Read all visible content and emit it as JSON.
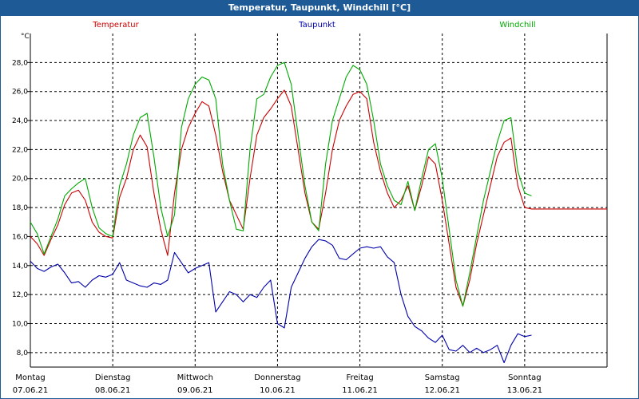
{
  "window": {
    "title": "Temperatur, Taupunkt, Windchill [°C]"
  },
  "chart_data": {
    "type": "line",
    "unit": "°C",
    "ylim": [
      7.0,
      30.0
    ],
    "yticks": [
      "8,0",
      "10,0",
      "12,0",
      "14,0",
      "16,0",
      "18,0",
      "20,0",
      "22,0",
      "24,0",
      "26,0",
      "28,0"
    ],
    "ytick_values": [
      8,
      10,
      12,
      14,
      16,
      18,
      20,
      22,
      24,
      26,
      28
    ],
    "xlim": [
      0,
      168
    ],
    "days": [
      {
        "weekday": "Montag",
        "date": "07.06.21"
      },
      {
        "weekday": "Dienstag",
        "date": "08.06.21"
      },
      {
        "weekday": "Mittwoch",
        "date": "09.06.21"
      },
      {
        "weekday": "Donnerstag",
        "date": "10.06.21"
      },
      {
        "weekday": "Freitag",
        "date": "11.06.21"
      },
      {
        "weekday": "Samstag",
        "date": "12.06.21"
      },
      {
        "weekday": "Sonntag",
        "date": "13.06.21"
      }
    ],
    "grid": true,
    "series": [
      {
        "name": "Temperatur",
        "color": "#cc0000",
        "x": [
          0,
          2,
          4,
          6,
          8,
          10,
          12,
          14,
          16,
          18,
          20,
          22,
          24,
          26,
          28,
          30,
          32,
          34,
          36,
          38,
          40,
          42,
          44,
          46,
          48,
          50,
          52,
          54,
          56,
          58,
          60,
          62,
          64,
          66,
          68,
          70,
          72,
          74,
          76,
          78,
          80,
          82,
          84,
          86,
          88,
          90,
          92,
          94,
          96,
          98,
          100,
          102,
          104,
          106,
          108,
          110,
          112,
          114,
          116,
          118,
          120,
          122,
          124,
          126,
          128,
          130,
          132,
          134,
          136,
          138,
          140,
          142,
          144,
          146,
          148,
          150,
          152,
          154,
          156,
          158,
          160,
          162,
          164,
          166,
          168
        ],
        "y": [
          16.0,
          15.5,
          14.7,
          15.8,
          16.8,
          18.2,
          19.0,
          19.2,
          18.5,
          17.0,
          16.3,
          16.0,
          15.9,
          18.7,
          20.0,
          22.0,
          23.0,
          22.2,
          19.0,
          16.5,
          14.7,
          19.0,
          22.0,
          23.5,
          24.5,
          25.3,
          25.0,
          23.0,
          20.5,
          18.5,
          17.5,
          16.5,
          20.0,
          23.0,
          24.2,
          24.8,
          25.5,
          26.1,
          25.0,
          22.0,
          19.0,
          17.0,
          16.5,
          19.0,
          22.0,
          24.0,
          25.0,
          25.8,
          26.0,
          25.5,
          22.5,
          20.5,
          19.0,
          18.0,
          18.5,
          19.5,
          17.8,
          19.5,
          21.5,
          21.0,
          18.5,
          15.5,
          12.5,
          11.2,
          13.0,
          15.5,
          17.5,
          19.5,
          21.5,
          22.5,
          22.8,
          19.5,
          18.0,
          17.9,
          17.9,
          17.9,
          17.9,
          17.9,
          17.9,
          17.9,
          17.9,
          17.9,
          17.9,
          17.9,
          17.9
        ]
      },
      {
        "name": "Taupunkt",
        "color": "#0000aa",
        "x": [
          0,
          2,
          4,
          6,
          8,
          10,
          12,
          14,
          16,
          18,
          20,
          22,
          24,
          26,
          28,
          30,
          32,
          34,
          36,
          38,
          40,
          42,
          44,
          46,
          48,
          50,
          52,
          54,
          56,
          58,
          60,
          62,
          64,
          66,
          68,
          70,
          72,
          74,
          76,
          78,
          80,
          82,
          84,
          86,
          88,
          90,
          92,
          94,
          96,
          98,
          100,
          102,
          104,
          106,
          108,
          110,
          112,
          114,
          116,
          118,
          120,
          122,
          124,
          126,
          128,
          130,
          132,
          134,
          136,
          138,
          140,
          142,
          144,
          146
        ],
        "y": [
          14.3,
          13.8,
          13.6,
          13.9,
          14.1,
          13.5,
          12.8,
          12.9,
          12.5,
          13.0,
          13.3,
          13.2,
          13.4,
          14.2,
          13.0,
          12.8,
          12.6,
          12.5,
          12.8,
          12.7,
          13.0,
          14.9,
          14.2,
          13.5,
          13.8,
          14.0,
          14.2,
          10.8,
          11.5,
          12.2,
          12.0,
          11.5,
          12.0,
          11.8,
          12.5,
          13.0,
          10.0,
          9.7,
          12.5,
          13.5,
          14.5,
          15.3,
          15.8,
          15.7,
          15.4,
          14.5,
          14.4,
          14.8,
          15.2,
          15.3,
          15.2,
          15.3,
          14.6,
          14.2,
          12.0,
          10.5,
          9.8,
          9.5,
          9.0,
          8.7,
          9.2,
          8.2,
          8.1,
          8.5,
          8.0,
          8.3,
          8.0,
          8.2,
          8.5,
          7.3,
          8.5,
          9.3,
          9.1,
          9.2
        ]
      },
      {
        "name": "Windchill",
        "color": "#00aa00",
        "x": [
          0,
          2,
          4,
          6,
          8,
          10,
          12,
          14,
          16,
          18,
          20,
          22,
          24,
          26,
          28,
          30,
          32,
          34,
          36,
          38,
          40,
          42,
          44,
          46,
          48,
          50,
          52,
          54,
          56,
          58,
          60,
          62,
          64,
          66,
          68,
          70,
          72,
          74,
          76,
          78,
          80,
          82,
          84,
          86,
          88,
          90,
          92,
          94,
          96,
          98,
          100,
          102,
          104,
          106,
          108,
          110,
          112,
          114,
          116,
          118,
          120,
          122,
          124,
          126,
          128,
          130,
          132,
          134,
          136,
          138,
          140,
          142,
          144,
          146
        ],
        "y": [
          17.0,
          16.2,
          14.8,
          16.0,
          17.2,
          18.8,
          19.3,
          19.7,
          20.0,
          18.0,
          16.6,
          16.2,
          16.0,
          19.5,
          21.0,
          23.0,
          24.2,
          24.5,
          21.5,
          18.0,
          16.0,
          17.5,
          23.5,
          25.5,
          26.5,
          27.0,
          26.8,
          25.5,
          21.0,
          18.5,
          16.5,
          16.4,
          22.0,
          25.5,
          25.8,
          27.0,
          27.8,
          28.0,
          26.5,
          23.0,
          19.5,
          17.0,
          16.4,
          21.0,
          24.0,
          25.5,
          27.0,
          27.8,
          27.5,
          26.5,
          24.0,
          21.0,
          19.5,
          18.5,
          18.2,
          19.8,
          17.8,
          20.0,
          22.0,
          22.4,
          20.0,
          16.5,
          13.0,
          11.2,
          13.5,
          16.0,
          18.5,
          20.5,
          22.5,
          24.0,
          24.2,
          20.5,
          19.0,
          18.8
        ]
      }
    ]
  }
}
